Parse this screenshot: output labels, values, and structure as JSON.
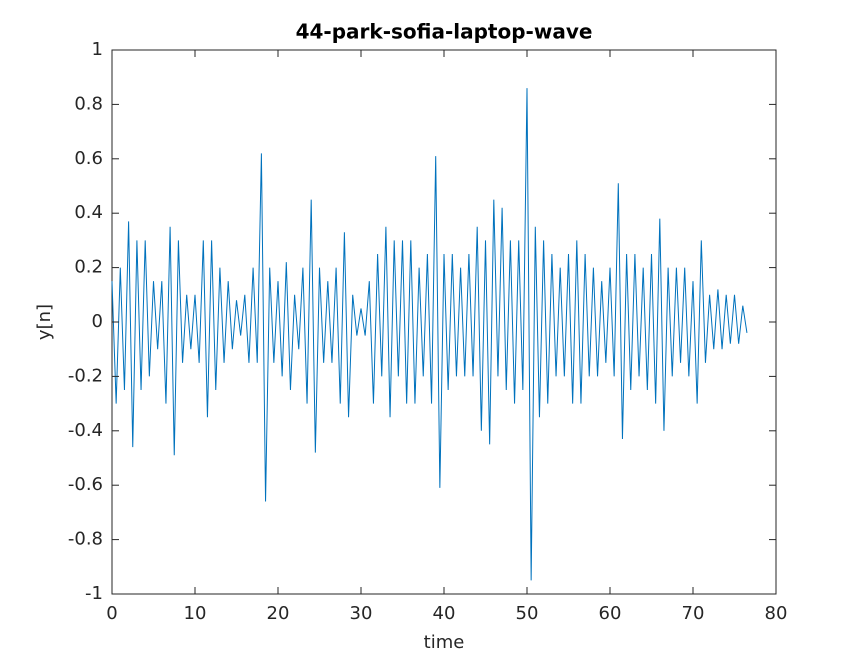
{
  "chart_data": {
    "type": "line",
    "title": "44-park-sofia-laptop-wave",
    "xlabel": "time",
    "ylabel": "y[n]",
    "xlim": [
      0,
      80
    ],
    "ylim": [
      -1,
      1
    ],
    "xticks": [
      0,
      10,
      20,
      30,
      40,
      50,
      60,
      70,
      80
    ],
    "yticks": [
      -1,
      -0.8,
      -0.6,
      -0.4,
      -0.2,
      0,
      0.2,
      0.4,
      0.6,
      0.8,
      1
    ],
    "grid": false,
    "x": [
      0,
      0.5,
      1,
      1.5,
      2,
      2.5,
      3,
      3.5,
      4,
      4.5,
      5,
      5.5,
      6,
      6.5,
      7,
      7.5,
      8,
      8.5,
      9,
      9.5,
      10,
      10.5,
      11,
      11.5,
      12,
      12.5,
      13,
      13.5,
      14,
      14.5,
      15,
      15.5,
      16,
      16.5,
      17,
      17.5,
      18,
      18.5,
      19,
      19.5,
      20,
      20.5,
      21,
      21.5,
      22,
      22.5,
      23,
      23.5,
      24,
      24.5,
      25,
      25.5,
      26,
      26.5,
      27,
      27.5,
      28,
      28.5,
      29,
      29.5,
      30,
      30.5,
      31,
      31.5,
      32,
      32.5,
      33,
      33.5,
      34,
      34.5,
      35,
      35.5,
      36,
      36.5,
      37,
      37.5,
      38,
      38.5,
      39,
      39.5,
      40,
      40.5,
      41,
      41.5,
      42,
      42.5,
      43,
      43.5,
      44,
      44.5,
      45,
      45.5,
      46,
      46.5,
      47,
      47.5,
      48,
      48.5,
      49,
      49.5,
      50,
      50.5,
      51,
      51.5,
      52,
      52.5,
      53,
      53.5,
      54,
      54.5,
      55,
      55.5,
      56,
      56.5,
      57,
      57.5,
      58,
      58.5,
      59,
      59.5,
      60,
      60.5,
      61,
      61.5,
      62,
      62.5,
      63,
      63.5,
      64,
      64.5,
      65,
      65.5,
      66,
      66.5,
      67,
      67.5,
      68,
      68.5,
      69,
      69.5,
      70,
      70.5,
      71,
      71.5,
      72,
      72.5,
      73,
      73.5,
      74,
      74.5,
      75,
      75.5,
      76,
      76.5
    ],
    "series": [
      {
        "name": "y[n]",
        "color": "#0072bd",
        "values": [
          0.15,
          -0.3,
          0.2,
          -0.25,
          0.37,
          -0.46,
          0.3,
          -0.25,
          0.3,
          -0.2,
          0.15,
          -0.1,
          0.15,
          -0.3,
          0.35,
          -0.49,
          0.3,
          -0.15,
          0.1,
          -0.1,
          0.1,
          -0.15,
          0.3,
          -0.35,
          0.3,
          -0.25,
          0.2,
          -0.15,
          0.15,
          -0.1,
          0.08,
          -0.05,
          0.1,
          -0.15,
          0.2,
          -0.15,
          0.62,
          -0.66,
          0.2,
          -0.15,
          0.15,
          -0.2,
          0.22,
          -0.25,
          0.1,
          -0.1,
          0.2,
          -0.3,
          0.45,
          -0.48,
          0.2,
          -0.15,
          0.15,
          -0.15,
          0.2,
          -0.3,
          0.33,
          -0.35,
          0.1,
          -0.05,
          0.05,
          -0.05,
          0.15,
          -0.3,
          0.25,
          -0.2,
          0.35,
          -0.35,
          0.3,
          -0.2,
          0.3,
          -0.3,
          0.3,
          -0.3,
          0.2,
          -0.2,
          0.25,
          -0.3,
          0.61,
          -0.61,
          0.25,
          -0.25,
          0.25,
          -0.2,
          0.2,
          -0.2,
          0.25,
          -0.2,
          0.35,
          -0.4,
          0.3,
          -0.45,
          0.45,
          -0.2,
          0.42,
          -0.25,
          0.3,
          -0.3,
          0.3,
          -0.25,
          0.86,
          -0.95,
          0.35,
          -0.35,
          0.3,
          -0.3,
          0.25,
          -0.2,
          0.2,
          -0.2,
          0.25,
          -0.3,
          0.3,
          -0.3,
          0.25,
          -0.2,
          0.2,
          -0.2,
          0.15,
          -0.15,
          0.2,
          -0.2,
          0.51,
          -0.43,
          0.25,
          -0.25,
          0.25,
          -0.2,
          0.2,
          -0.25,
          0.25,
          -0.3,
          0.38,
          -0.4,
          0.2,
          -0.2,
          0.2,
          -0.15,
          0.2,
          -0.2,
          0.15,
          -0.3,
          0.3,
          -0.15,
          0.1,
          -0.1,
          0.12,
          -0.1,
          0.1,
          -0.08,
          0.1,
          -0.08,
          0.06,
          -0.04
        ]
      }
    ]
  }
}
